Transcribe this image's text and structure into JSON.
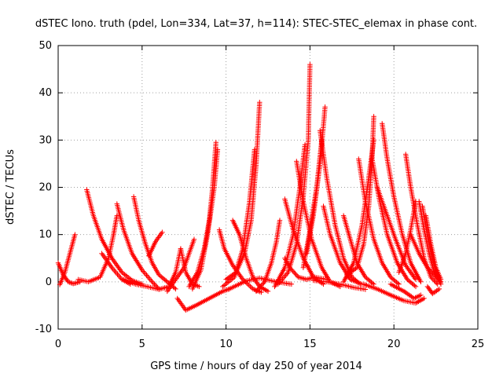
{
  "chart_data": {
    "type": "scatter",
    "title": "dSTEC Iono. truth (pdel, Lon=334, Lat=37, h=114): STEC-STEC_elemax in phase cont.",
    "xlabel": "GPS time / hours of day 250 of year 2014",
    "ylabel": "dSTEC  / TECUs",
    "xlim": [
      0,
      25
    ],
    "ylim": [
      -10,
      50
    ],
    "xticks": [
      "0",
      "5",
      "10",
      "15",
      "20",
      "25"
    ],
    "yticks": [
      "-10",
      "0",
      "10",
      "20",
      "30",
      "40",
      "50"
    ],
    "grid": true,
    "marker": "+",
    "series_color": "#ff0000",
    "arcs": [
      {
        "points": [
          [
            0.0,
            4.0
          ],
          [
            0.3,
            1.5
          ],
          [
            0.6,
            0.0
          ],
          [
            0.9,
            -0.4
          ],
          [
            1.3,
            0.0
          ]
        ]
      },
      {
        "points": [
          [
            0.1,
            -0.6
          ],
          [
            0.4,
            2.0
          ],
          [
            0.7,
            6.0
          ],
          [
            1.0,
            10.0
          ]
        ]
      },
      {
        "points": [
          [
            1.2,
            0.5
          ],
          [
            1.8,
            0.0
          ],
          [
            2.5,
            1.0
          ],
          [
            3.0,
            5.0
          ],
          [
            3.3,
            10.0
          ],
          [
            3.5,
            14.0
          ]
        ]
      },
      {
        "points": [
          [
            1.7,
            19.5
          ],
          [
            2.1,
            14.0
          ],
          [
            2.6,
            9.0
          ],
          [
            3.2,
            5.0
          ],
          [
            3.8,
            2.0
          ],
          [
            4.4,
            0.3
          ],
          [
            5.0,
            -0.5
          ]
        ]
      },
      {
        "points": [
          [
            2.6,
            6.0
          ],
          [
            3.2,
            3.0
          ],
          [
            3.8,
            0.5
          ],
          [
            4.3,
            -0.5
          ]
        ]
      },
      {
        "points": [
          [
            3.5,
            16.5
          ],
          [
            3.9,
            11.0
          ],
          [
            4.4,
            6.0
          ],
          [
            5.0,
            2.5
          ],
          [
            5.6,
            0.0
          ],
          [
            6.0,
            -1.5
          ]
        ]
      },
      {
        "points": [
          [
            4.5,
            18.0
          ],
          [
            4.8,
            13.0
          ],
          [
            5.2,
            8.0
          ],
          [
            5.6,
            4.0
          ],
          [
            6.0,
            1.5
          ],
          [
            6.5,
            0.0
          ],
          [
            7.0,
            -1.5
          ]
        ]
      },
      {
        "points": [
          [
            3.9,
            0.5
          ],
          [
            4.6,
            -0.5
          ],
          [
            5.3,
            -1.0
          ],
          [
            6.0,
            -1.6
          ],
          [
            6.6,
            -1.0
          ],
          [
            7.0,
            2.0
          ],
          [
            7.3,
            7.0
          ]
        ]
      },
      {
        "points": [
          [
            5.4,
            5.5
          ],
          [
            5.8,
            8.5
          ],
          [
            6.2,
            10.5
          ]
        ]
      },
      {
        "points": [
          [
            6.5,
            -2.0
          ],
          [
            7.0,
            0.5
          ],
          [
            7.5,
            3.0
          ],
          [
            7.8,
            6.0
          ],
          [
            8.1,
            9.0
          ]
        ]
      },
      {
        "points": [
          [
            7.3,
            7.0
          ],
          [
            7.6,
            2.0
          ],
          [
            8.0,
            -0.5
          ],
          [
            8.4,
            -1.0
          ]
        ]
      },
      {
        "points": [
          [
            7.1,
            -3.5
          ],
          [
            7.6,
            -6.0
          ],
          [
            8.2,
            -5.0
          ],
          [
            9.0,
            -3.5
          ],
          [
            9.8,
            -2.0
          ],
          [
            10.2,
            -1.5
          ]
        ]
      },
      {
        "points": [
          [
            7.8,
            -1.0
          ],
          [
            8.3,
            2.0
          ],
          [
            8.7,
            7.0
          ],
          [
            9.0,
            13.0
          ],
          [
            9.2,
            20.0
          ],
          [
            9.4,
            29.5
          ]
        ]
      },
      {
        "points": [
          [
            8.0,
            -1.5
          ],
          [
            8.5,
            2.5
          ],
          [
            8.9,
            10.0
          ],
          [
            9.3,
            20.0
          ],
          [
            9.5,
            28.0
          ]
        ]
      },
      {
        "points": [
          [
            9.6,
            11.0
          ],
          [
            9.9,
            7.0
          ],
          [
            10.4,
            3.5
          ],
          [
            11.0,
            0.5
          ],
          [
            11.6,
            -1.5
          ],
          [
            12.1,
            -2.2
          ]
        ]
      },
      {
        "points": [
          [
            10.4,
            13.0
          ],
          [
            10.8,
            10.0
          ],
          [
            11.2,
            5.0
          ],
          [
            11.6,
            1.0
          ],
          [
            12.0,
            -1.0
          ],
          [
            12.5,
            -2.0
          ]
        ]
      },
      {
        "points": [
          [
            10.0,
            0.5
          ],
          [
            10.6,
            2.0
          ],
          [
            11.1,
            6.0
          ],
          [
            11.5,
            13.0
          ],
          [
            11.8,
            25.0
          ],
          [
            12.0,
            38.0
          ]
        ]
      },
      {
        "points": [
          [
            9.8,
            -1.0
          ],
          [
            10.5,
            1.0
          ],
          [
            11.0,
            7.0
          ],
          [
            11.4,
            17.0
          ],
          [
            11.7,
            28.0
          ]
        ]
      },
      {
        "points": [
          [
            11.8,
            -2.0
          ],
          [
            12.3,
            0.0
          ],
          [
            12.7,
            4.0
          ],
          [
            13.0,
            8.5
          ],
          [
            13.2,
            13.0
          ]
        ]
      },
      {
        "points": [
          [
            10.2,
            -1.5
          ],
          [
            11.2,
            0.2
          ],
          [
            12.0,
            0.8
          ],
          [
            13.0,
            0.0
          ],
          [
            13.9,
            -0.5
          ]
        ]
      },
      {
        "points": [
          [
            13.5,
            5.0
          ],
          [
            13.8,
            3.0
          ],
          [
            14.3,
            1.0
          ],
          [
            14.8,
            0.5
          ],
          [
            15.3,
            1.0
          ],
          [
            16.0,
            0.5
          ]
        ]
      },
      {
        "points": [
          [
            13.1,
            -0.5
          ],
          [
            13.7,
            2.0
          ],
          [
            14.2,
            8.0
          ],
          [
            14.6,
            18.0
          ],
          [
            14.9,
            30.0
          ],
          [
            15.0,
            46.0
          ]
        ]
      },
      {
        "points": [
          [
            12.9,
            -1.0
          ],
          [
            13.5,
            3.0
          ],
          [
            14.0,
            10.0
          ],
          [
            14.4,
            20.0
          ],
          [
            14.7,
            29.0
          ]
        ]
      },
      {
        "points": [
          [
            13.5,
            17.5
          ],
          [
            14.0,
            11.0
          ],
          [
            14.6,
            5.0
          ],
          [
            15.2,
            1.0
          ],
          [
            15.8,
            -0.5
          ]
        ]
      },
      {
        "points": [
          [
            14.2,
            25.5
          ],
          [
            14.6,
            17.0
          ],
          [
            15.1,
            9.0
          ],
          [
            15.7,
            3.0
          ],
          [
            16.2,
            0.0
          ],
          [
            16.8,
            -1.0
          ]
        ]
      },
      {
        "points": [
          [
            14.8,
            6.0
          ],
          [
            15.2,
            14.0
          ],
          [
            15.6,
            25.0
          ],
          [
            15.9,
            37.0
          ]
        ]
      },
      {
        "points": [
          [
            14.6,
            3.0
          ],
          [
            15.0,
            11.0
          ],
          [
            15.4,
            20.0
          ],
          [
            15.7,
            30.0
          ]
        ]
      },
      {
        "points": [
          [
            15.6,
            32.0
          ],
          [
            16.0,
            22.0
          ],
          [
            16.5,
            12.0
          ],
          [
            17.0,
            5.0
          ],
          [
            17.5,
            1.0
          ],
          [
            18.0,
            -0.5
          ]
        ]
      },
      {
        "points": [
          [
            15.8,
            16.0
          ],
          [
            16.2,
            10.0
          ],
          [
            16.8,
            4.0
          ],
          [
            17.4,
            0.5
          ],
          [
            18.1,
            -0.5
          ]
        ]
      },
      {
        "points": [
          [
            15.2,
            0.3
          ],
          [
            16.0,
            0.0
          ],
          [
            16.8,
            -0.5
          ],
          [
            17.6,
            -1.2
          ],
          [
            18.3,
            -1.6
          ]
        ]
      },
      {
        "points": [
          [
            17.0,
            14.0
          ],
          [
            17.4,
            9.0
          ],
          [
            17.8,
            4.0
          ],
          [
            18.3,
            1.0
          ],
          [
            18.8,
            -0.5
          ]
        ]
      },
      {
        "points": [
          [
            17.2,
            1.5
          ],
          [
            17.8,
            3.0
          ],
          [
            18.2,
            8.0
          ],
          [
            18.5,
            16.0
          ],
          [
            18.7,
            26.0
          ],
          [
            18.8,
            35.0
          ]
        ]
      },
      {
        "points": [
          [
            17.0,
            0.0
          ],
          [
            17.6,
            4.0
          ],
          [
            18.1,
            12.0
          ],
          [
            18.5,
            22.0
          ],
          [
            18.8,
            30.0
          ]
        ]
      },
      {
        "points": [
          [
            17.9,
            26.0
          ],
          [
            18.3,
            17.0
          ],
          [
            18.8,
            9.0
          ],
          [
            19.3,
            4.0
          ],
          [
            19.8,
            1.0
          ],
          [
            20.3,
            -0.5
          ]
        ]
      },
      {
        "points": [
          [
            18.7,
            26.0
          ],
          [
            19.1,
            18.0
          ],
          [
            19.6,
            10.0
          ],
          [
            20.2,
            4.0
          ],
          [
            20.8,
            0.5
          ],
          [
            21.3,
            -1.0
          ]
        ]
      },
      {
        "points": [
          [
            19.3,
            33.5
          ],
          [
            19.6,
            26.0
          ],
          [
            20.0,
            18.0
          ],
          [
            20.5,
            10.0
          ],
          [
            21.0,
            4.0
          ],
          [
            21.6,
            0.0
          ]
        ]
      },
      {
        "points": [
          [
            19.0,
            20.0
          ],
          [
            19.5,
            15.0
          ],
          [
            20.1,
            9.0
          ],
          [
            20.7,
            3.5
          ],
          [
            21.3,
            0.5
          ]
        ]
      },
      {
        "points": [
          [
            18.2,
            -0.5
          ],
          [
            19.0,
            -1.5
          ],
          [
            19.8,
            -2.8
          ],
          [
            20.6,
            -4.0
          ],
          [
            21.3,
            -4.5
          ],
          [
            21.8,
            -3.5
          ]
        ]
      },
      {
        "points": [
          [
            19.8,
            -0.5
          ],
          [
            20.6,
            -2.0
          ],
          [
            21.2,
            -3.5
          ],
          [
            21.6,
            -2.8
          ]
        ]
      },
      {
        "points": [
          [
            20.3,
            2.0
          ],
          [
            20.7,
            6.0
          ],
          [
            21.0,
            11.0
          ],
          [
            21.3,
            17.0
          ]
        ]
      },
      {
        "points": [
          [
            20.7,
            27.0
          ],
          [
            21.0,
            20.0
          ],
          [
            21.4,
            12.0
          ],
          [
            21.8,
            5.0
          ],
          [
            22.2,
            1.0
          ],
          [
            22.6,
            -0.5
          ]
        ]
      },
      {
        "points": [
          [
            21.0,
            10.0
          ],
          [
            21.5,
            6.0
          ],
          [
            22.0,
            3.0
          ],
          [
            22.5,
            1.0
          ],
          [
            22.8,
            0.0
          ]
        ]
      },
      {
        "points": [
          [
            21.5,
            17.0
          ],
          [
            21.8,
            11.0
          ],
          [
            22.1,
            6.0
          ],
          [
            22.4,
            2.0
          ],
          [
            22.7,
            0.5
          ]
        ]
      },
      {
        "points": [
          [
            21.7,
            16.0
          ],
          [
            22.0,
            10.0
          ],
          [
            22.3,
            5.0
          ],
          [
            22.6,
            1.0
          ],
          [
            22.8,
            -0.5
          ]
        ]
      },
      {
        "points": [
          [
            21.9,
            14.0
          ],
          [
            22.2,
            8.0
          ],
          [
            22.5,
            3.0
          ],
          [
            22.8,
            0.5
          ]
        ]
      },
      {
        "points": [
          [
            22.0,
            -1.0
          ],
          [
            22.3,
            -2.5
          ],
          [
            22.7,
            -1.5
          ]
        ]
      }
    ]
  }
}
